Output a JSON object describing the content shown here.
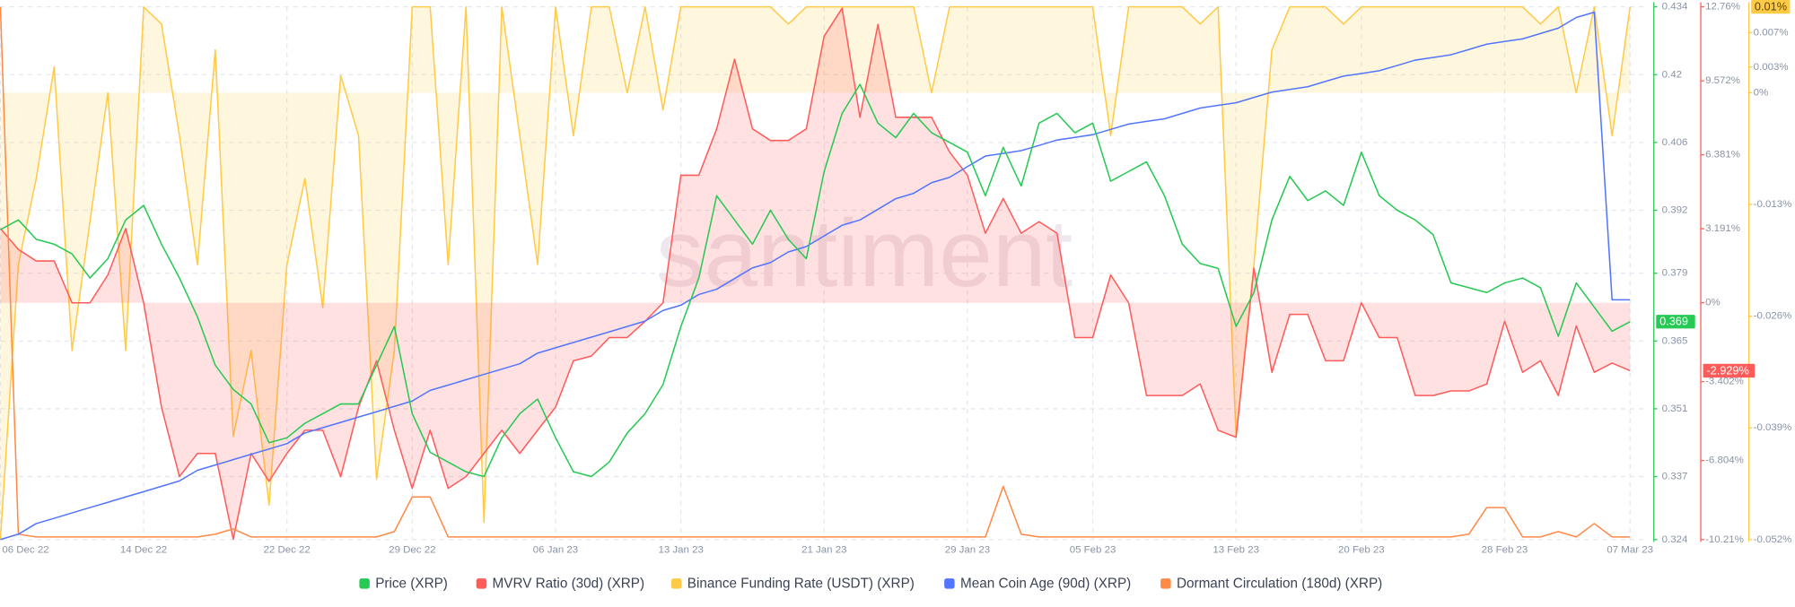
{
  "chart_data": {
    "type": "line",
    "watermark": "santiment",
    "categories": [
      "06 Dec 22",
      null,
      null,
      null,
      null,
      null,
      null,
      null,
      "14 Dec 22",
      null,
      null,
      null,
      null,
      null,
      null,
      null,
      "22 Dec 22",
      null,
      null,
      null,
      null,
      null,
      null,
      "29 Dec 22",
      null,
      null,
      null,
      null,
      null,
      null,
      null,
      "06 Jan 23",
      null,
      null,
      null,
      null,
      null,
      null,
      "13 Jan 23",
      null,
      null,
      null,
      null,
      null,
      null,
      null,
      "21 Jan 23",
      null,
      null,
      null,
      null,
      null,
      null,
      null,
      "29 Jan 23",
      null,
      null,
      null,
      null,
      null,
      null,
      "05 Feb 23",
      null,
      null,
      null,
      null,
      null,
      null,
      null,
      "13 Feb 23",
      null,
      null,
      null,
      null,
      null,
      null,
      "20 Feb 23",
      null,
      null,
      null,
      null,
      null,
      null,
      null,
      "28 Feb 23",
      null,
      null,
      null,
      null,
      null,
      null,
      "07 Mar 23"
    ],
    "series": [
      {
        "name": "Price (XRP)",
        "color": "#26c953",
        "axis": "y",
        "values": [
          0.388,
          0.39,
          0.386,
          0.385,
          0.383,
          0.378,
          0.382,
          0.39,
          0.393,
          0.385,
          0.378,
          0.37,
          0.36,
          0.355,
          0.352,
          0.344,
          0.345,
          0.348,
          0.35,
          0.352,
          0.352,
          0.36,
          0.368,
          0.35,
          0.342,
          0.34,
          0.338,
          0.337,
          0.345,
          0.35,
          0.353,
          0.345,
          0.338,
          0.337,
          0.34,
          0.346,
          0.35,
          0.356,
          0.368,
          0.378,
          0.395,
          0.39,
          0.385,
          0.392,
          0.386,
          0.382,
          0.4,
          0.412,
          0.418,
          0.41,
          0.407,
          0.412,
          0.408,
          0.406,
          0.404,
          0.395,
          0.405,
          0.397,
          0.41,
          0.412,
          0.408,
          0.41,
          0.398,
          0.4,
          0.402,
          0.395,
          0.385,
          0.381,
          0.38,
          0.368,
          0.375,
          0.39,
          0.399,
          0.394,
          0.396,
          0.393,
          0.404,
          0.395,
          0.392,
          0.39,
          0.387,
          0.377,
          0.376,
          0.375,
          0.377,
          0.378,
          0.376,
          0.366,
          0.377,
          0.372,
          0.367,
          0.369
        ]
      },
      {
        "name": "MVRV Ratio (30d) (XRP)",
        "color": "#ff5b5b",
        "axis": "y2",
        "fill": true,
        "values": [
          3.2,
          2.3,
          1.8,
          1.8,
          0,
          0,
          1.2,
          3.2,
          0,
          -4.5,
          -7.5,
          -6.5,
          -6.5,
          -10.2,
          -6.5,
          -7.7,
          -6.5,
          -5.5,
          -5.5,
          -7.5,
          -4.5,
          -2.5,
          -5.5,
          -8,
          -5.5,
          -8,
          -7.5,
          -6.5,
          -5.5,
          -6.5,
          -5.5,
          -4.5,
          -2.5,
          -2.3,
          -1.5,
          -1.5,
          -0.8,
          0,
          5.5,
          5.5,
          7.5,
          10.5,
          7.5,
          7,
          7,
          7.5,
          11.5,
          12.7,
          8,
          12,
          8,
          8,
          8,
          6.5,
          5.5,
          3,
          4.5,
          3,
          3.5,
          3,
          -1.5,
          -1.5,
          1.2,
          0,
          -4,
          -4,
          -4,
          -3.5,
          -5.5,
          -5.8,
          1.5,
          -3,
          -0.5,
          -0.5,
          -2.5,
          -2.5,
          0,
          -1.5,
          -1.5,
          -4,
          -4,
          -3.8,
          -3.8,
          -3.5,
          -0.8,
          -3,
          -2.5,
          -4,
          -1,
          -3,
          -2.6,
          -2.929
        ]
      },
      {
        "name": "Binance Funding Rate (USDT) (XRP)",
        "color": "#ffcb47",
        "axis": "y3",
        "fill": true,
        "values": [
          -0.052,
          -0.02,
          -0.01,
          0.003,
          -0.03,
          -0.015,
          0,
          -0.03,
          0.01,
          0.008,
          -0.005,
          -0.02,
          0.005,
          -0.04,
          -0.03,
          -0.048,
          -0.02,
          -0.01,
          -0.025,
          0.002,
          -0.005,
          -0.045,
          -0.03,
          0.01,
          0.01,
          -0.02,
          0.01,
          -0.05,
          0.01,
          -0.005,
          -0.02,
          0.01,
          -0.005,
          0.01,
          0.01,
          0,
          0.01,
          -0.002,
          0.01,
          0.01,
          0.01,
          0.01,
          0.01,
          0.01,
          0.008,
          0.01,
          0.01,
          0.01,
          0.01,
          0.01,
          0.01,
          0.01,
          0,
          0.01,
          0.01,
          0.01,
          0.01,
          0.01,
          0.01,
          0.01,
          0.01,
          0.01,
          -0.005,
          0.01,
          0.01,
          0.01,
          0.01,
          0.008,
          0.01,
          -0.04,
          -0.02,
          0.005,
          0.01,
          0.01,
          0.01,
          0.008,
          0.01,
          0.01,
          0.01,
          0.01,
          0.01,
          0.01,
          0.01,
          0.01,
          0.01,
          0.01,
          0.008,
          0.01,
          0,
          0.01,
          -0.005,
          0.01
        ]
      },
      {
        "name": "Mean Coin Age (90d) (XRP)",
        "color": "#5275ff",
        "axis": "y4",
        "values": [
          0,
          1,
          3,
          4,
          5,
          6,
          7,
          8,
          9,
          10,
          11,
          13,
          14,
          15,
          16,
          17,
          18,
          20,
          21,
          22,
          23,
          24,
          25,
          26,
          28,
          29,
          30,
          31,
          32,
          33,
          35,
          36,
          37,
          38,
          39,
          40,
          41,
          43,
          44,
          46,
          47,
          49,
          51,
          52,
          54,
          55,
          57,
          59,
          60,
          62,
          64,
          65,
          67,
          68,
          70,
          72,
          72.5,
          73,
          74,
          75,
          75.5,
          76,
          77,
          78,
          78.5,
          79,
          80,
          81,
          81.5,
          82,
          83,
          84,
          84.5,
          85,
          86,
          87,
          87.5,
          88,
          89,
          90,
          90.5,
          91,
          92,
          93,
          93.5,
          94,
          95,
          96,
          98,
          99,
          45,
          45
        ]
      },
      {
        "name": "Dormant Circulation (180d) (XRP)",
        "color": "#ff8a47",
        "axis": "y5",
        "values": [
          100,
          1,
          0.5,
          0.5,
          0.5,
          0.5,
          0.5,
          0.5,
          0.5,
          0.5,
          0.5,
          0.5,
          1,
          2,
          0.5,
          0.5,
          0.5,
          0.5,
          0.5,
          0.5,
          0.5,
          0.5,
          1.5,
          8,
          8,
          0.5,
          0.5,
          0.5,
          0.5,
          0.5,
          0.5,
          0.5,
          0.5,
          0.5,
          0.5,
          0.5,
          0.5,
          0.5,
          0.5,
          0.5,
          0.5,
          0.5,
          0.5,
          0.5,
          0.5,
          0.5,
          0.5,
          0.5,
          0.5,
          0.5,
          0.5,
          0.5,
          0.5,
          0.5,
          0.5,
          0.5,
          10,
          1,
          0.5,
          0.5,
          0.5,
          0.5,
          0.5,
          0.5,
          0.5,
          0.5,
          0.5,
          0.5,
          0.5,
          0.5,
          0.5,
          0.5,
          0.5,
          0.5,
          0.5,
          0.5,
          0.5,
          0.5,
          0.5,
          0.5,
          0.5,
          0.5,
          1,
          6,
          6,
          0.5,
          0.5,
          1.5,
          0.5,
          3,
          0.5,
          0.5
        ]
      }
    ],
    "ylim": [
      0.324,
      0.434
    ],
    "yticks": [
      0.324,
      0.337,
      0.351,
      0.365,
      0.379,
      0.392,
      0.406,
      0.42,
      0.434
    ],
    "y2lim": [
      -10.21,
      12.76
    ],
    "y2ticks": [
      {
        "value": 12.76,
        "label": "12.76%"
      },
      {
        "value": 9.572,
        "label": "9.572%"
      },
      {
        "value": 6.381,
        "label": "6.381%"
      },
      {
        "value": 3.191,
        "label": "3.191%"
      },
      {
        "value": 0,
        "label": "0%"
      },
      {
        "value": -3.402,
        "label": "-3.402%"
      },
      {
        "value": -6.804,
        "label": "-6.804%"
      },
      {
        "value": -10.21,
        "label": "-10.21%"
      }
    ],
    "y3lim": [
      -0.052,
      0.01
    ],
    "y3ticks": [
      {
        "value": 0.007,
        "label": "0.007%"
      },
      {
        "value": 0.003,
        "label": "0.003%"
      },
      {
        "value": 0,
        "label": "0%"
      },
      {
        "value": -0.013,
        "label": "-0.013%"
      },
      {
        "value": -0.026,
        "label": "-0.026%"
      },
      {
        "value": -0.039,
        "label": "-0.039%"
      },
      {
        "value": -0.052,
        "label": "-0.052%"
      }
    ],
    "y4lim": [
      0,
      100
    ],
    "y5lim": [
      0,
      100
    ],
    "annotations": [
      {
        "text": "0.369",
        "series": 0
      },
      {
        "text": "-2.929%",
        "series": 1
      },
      {
        "text": "0.01%",
        "series": 2
      }
    ],
    "grid": true,
    "legend": "bottom"
  }
}
